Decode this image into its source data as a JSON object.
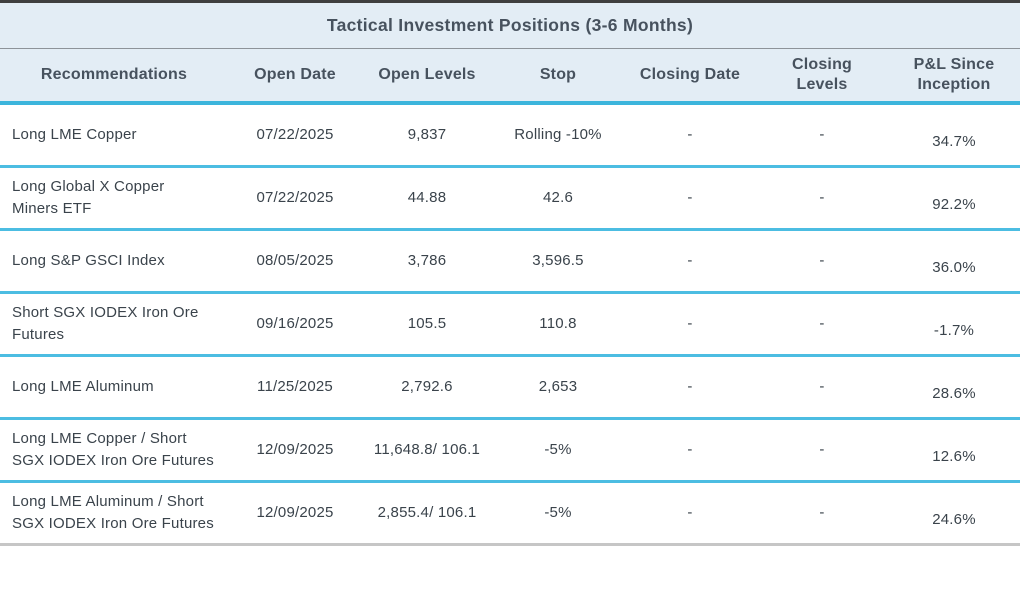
{
  "table": {
    "title": "Tactical Investment Positions (3-6 Months)",
    "columns": [
      "Recommendations",
      "Open Date",
      "Open Levels",
      "Stop",
      "Closing Date",
      "Closing Levels",
      "P&L Since Inception"
    ],
    "rows": [
      {
        "recommendation": "Long LME Copper",
        "open_date": "07/22/2025",
        "open_levels": "9,837",
        "stop": "Rolling -10%",
        "closing_date": "-",
        "closing_levels": "-",
        "pnl": "34.7%"
      },
      {
        "recommendation": "Long Global X Copper Miners ETF",
        "open_date": "07/22/2025",
        "open_levels": "44.88",
        "stop": "42.6",
        "closing_date": "-",
        "closing_levels": "-",
        "pnl": "92.2%"
      },
      {
        "recommendation": "Long S&P GSCI Index",
        "open_date": "08/05/2025",
        "open_levels": "3,786",
        "stop": "3,596.5",
        "closing_date": "-",
        "closing_levels": "-",
        "pnl": "36.0%"
      },
      {
        "recommendation": "Short SGX IODEX Iron Ore Futures",
        "open_date": "09/16/2025",
        "open_levels": "105.5",
        "stop": "110.8",
        "closing_date": "-",
        "closing_levels": "-",
        "pnl": "-1.7%"
      },
      {
        "recommendation": "Long LME Aluminum",
        "open_date": "11/25/2025",
        "open_levels": "2,792.6",
        "stop": "2,653",
        "closing_date": "-",
        "closing_levels": "-",
        "pnl": "28.6%"
      },
      {
        "recommendation": "Long LME Copper / Short SGX IODEX Iron Ore Futures",
        "open_date": "12/09/2025",
        "open_levels": "11,648.8/ 106.1",
        "stop": "-5%",
        "closing_date": "-",
        "closing_levels": "-",
        "pnl": "12.6%"
      },
      {
        "recommendation": "Long LME Aluminum / Short SGX IODEX Iron Ore Futures",
        "open_date": "12/09/2025",
        "open_levels": "2,855.4/ 106.1",
        "stop": "-5%",
        "closing_date": "-",
        "closing_levels": "-",
        "pnl": "24.6%"
      }
    ],
    "colors": {
      "header_bg": "#e3edf5",
      "accent_line": "#3cb5dc",
      "row_separator": "#4cbde2",
      "top_border": "#3f3f3f",
      "title_divider": "#8d9399",
      "bottom_border": "#c6c6c6",
      "header_text": "#47525e",
      "body_text": "#3a434b"
    }
  }
}
